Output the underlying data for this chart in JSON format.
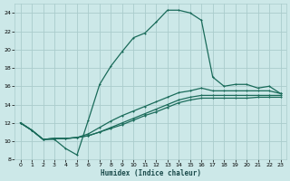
{
  "xlabel": "Humidex (Indice chaleur)",
  "bg_color": "#cce8e8",
  "grid_color": "#aacccc",
  "line_color": "#1a6b5a",
  "xlim": [
    -0.5,
    23.5
  ],
  "ylim": [
    8,
    25
  ],
  "xticks": [
    0,
    1,
    2,
    3,
    4,
    5,
    6,
    7,
    8,
    9,
    10,
    11,
    12,
    13,
    14,
    15,
    16,
    17,
    18,
    19,
    20,
    21,
    22,
    23
  ],
  "yticks": [
    8,
    10,
    12,
    14,
    16,
    18,
    20,
    22,
    24
  ],
  "line1_x": [
    0,
    1,
    2,
    3,
    4,
    5,
    6,
    7,
    8,
    9,
    10,
    11,
    12,
    13,
    14,
    15,
    16,
    17,
    18,
    19,
    20,
    21,
    22,
    23
  ],
  "line1_y": [
    12,
    11.2,
    10.2,
    10.2,
    9.2,
    8.5,
    12.3,
    16.2,
    18.2,
    19.8,
    21.3,
    21.8,
    23.0,
    24.3,
    24.3,
    24.0,
    23.2,
    17.0,
    16.0,
    16.2,
    16.2,
    15.8,
    16.0,
    15.2
  ],
  "line2_x": [
    0,
    1,
    2,
    3,
    4,
    5,
    6,
    7,
    8,
    9,
    10,
    11,
    12,
    13,
    14,
    15,
    16,
    17,
    18,
    19,
    20,
    21,
    22,
    23
  ],
  "line2_y": [
    12,
    11.2,
    10.2,
    10.3,
    10.3,
    10.4,
    10.8,
    11.5,
    12.2,
    12.8,
    13.3,
    13.8,
    14.3,
    14.8,
    15.3,
    15.5,
    15.8,
    15.5,
    15.5,
    15.5,
    15.5,
    15.5,
    15.5,
    15.2
  ],
  "line3_x": [
    0,
    1,
    2,
    3,
    4,
    5,
    6,
    7,
    8,
    9,
    10,
    11,
    12,
    13,
    14,
    15,
    16,
    17,
    18,
    19,
    20,
    21,
    22,
    23
  ],
  "line3_y": [
    12,
    11.2,
    10.2,
    10.3,
    10.3,
    10.4,
    10.6,
    11.0,
    11.5,
    12.0,
    12.5,
    13.0,
    13.5,
    14.0,
    14.5,
    14.8,
    15.0,
    15.0,
    15.0,
    15.0,
    15.0,
    15.0,
    15.0,
    15.0
  ],
  "line4_x": [
    0,
    1,
    2,
    3,
    4,
    5,
    6,
    7,
    8,
    9,
    10,
    11,
    12,
    13,
    14,
    15,
    16,
    17,
    18,
    19,
    20,
    21,
    22,
    23
  ],
  "line4_y": [
    12,
    11.2,
    10.2,
    10.3,
    10.3,
    10.4,
    10.6,
    11.0,
    11.4,
    11.8,
    12.3,
    12.8,
    13.2,
    13.7,
    14.2,
    14.5,
    14.7,
    14.7,
    14.7,
    14.7,
    14.7,
    14.8,
    14.8,
    14.8
  ]
}
